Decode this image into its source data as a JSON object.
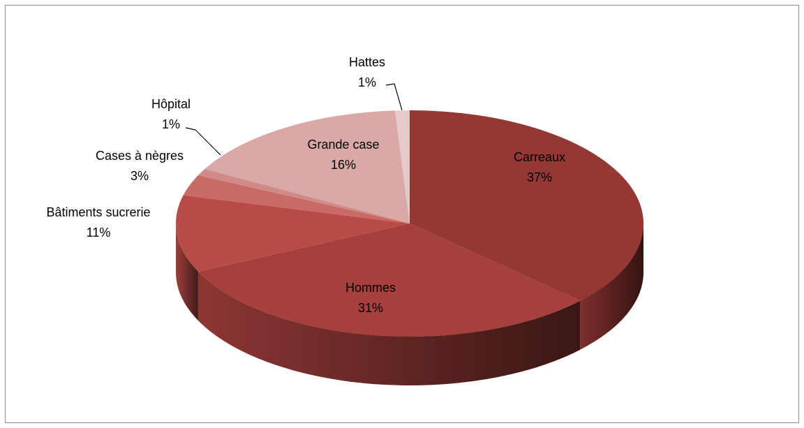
{
  "chart_data": {
    "type": "pie3d",
    "categories": [
      "Carreaux",
      "Hommes",
      "Bâtiments sucrerie",
      "Cases à nègres",
      "Hôpital",
      "Grande case",
      "Hattes"
    ],
    "values": [
      37,
      31,
      11,
      3,
      1,
      16,
      1
    ],
    "value_labels": [
      "37%",
      "31%",
      "11%",
      "3%",
      "1%",
      "16%",
      "1%"
    ],
    "colors": [
      "#953735",
      "#a5403d",
      "#b84b47",
      "#c96a66",
      "#d08a87",
      "#d9a9a7",
      "#e6cac9"
    ]
  }
}
